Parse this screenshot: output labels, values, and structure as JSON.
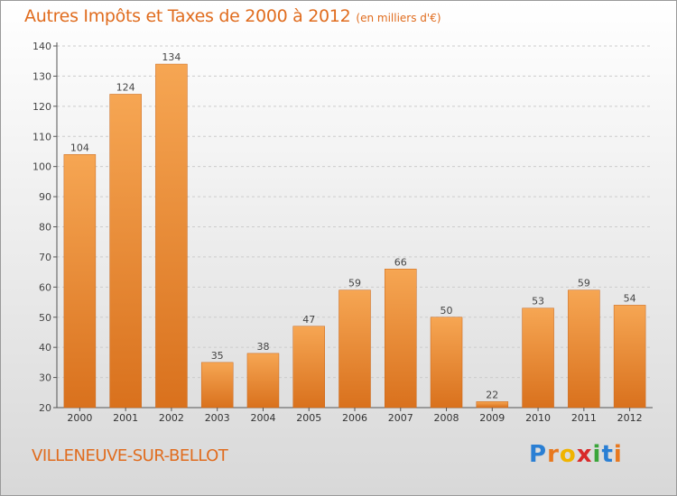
{
  "header": {
    "title": "Autres Impôts et Taxes de 2000 à 2012",
    "subtitle": "(en milliers d'€)"
  },
  "footer": {
    "commune": "VILLENEUVE-SUR-BELLOT",
    "logo_text": "Proxiti",
    "logo_letters": [
      {
        "char": "P",
        "color": "#2a7fd4"
      },
      {
        "char": "r",
        "color": "#e8781e"
      },
      {
        "char": "o",
        "color": "#f0b400"
      },
      {
        "char": "x",
        "color": "#d92a2a"
      },
      {
        "char": "i",
        "color": "#3aa53a"
      },
      {
        "char": "t",
        "color": "#2a7fd4"
      },
      {
        "char": "i",
        "color": "#e8781e"
      }
    ]
  },
  "colors": {
    "accent": "#e06c1e",
    "bar_top": "#f6a653",
    "bar_bottom": "#d9711d",
    "axis": "#555555",
    "grid": "#cccccc"
  },
  "chart_data": {
    "type": "bar",
    "title": "Autres Impôts et Taxes de 2000 à 2012",
    "subtitle": "(en milliers d'€)",
    "xlabel": "",
    "ylabel": "",
    "categories": [
      "2000",
      "2001",
      "2002",
      "2003",
      "2004",
      "2005",
      "2006",
      "2007",
      "2008",
      "2009",
      "2010",
      "2011",
      "2012"
    ],
    "values": [
      104,
      124,
      134,
      35,
      38,
      47,
      59,
      66,
      50,
      22,
      53,
      59,
      54
    ],
    "ylim": [
      20,
      140
    ],
    "yticks": [
      20,
      30,
      40,
      50,
      60,
      70,
      80,
      90,
      100,
      110,
      120,
      130,
      140
    ],
    "grid": "horizontal dashed",
    "legend": "none",
    "data_labels": true
  }
}
